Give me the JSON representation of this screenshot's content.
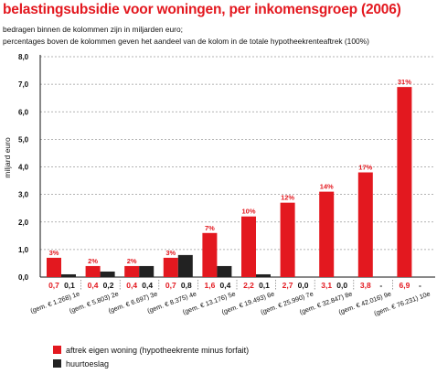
{
  "title": "belastingsubsidie voor woningen, per inkomensgroep (2006)",
  "subtitle_1": "bedragen binnen de kolommen zijn in miljarden euro;",
  "subtitle_2": "percentages boven de kolommen geven het aandeel van de kolom in de totale hypotheekrenteaftrek (100%)",
  "colors": {
    "red": "#e3181f",
    "black": "#222222",
    "grid": "#9a9a9a"
  },
  "chart_data": {
    "type": "bar",
    "ylabel": "miljard euro",
    "ylim": [
      0,
      8
    ],
    "yticks": [
      "0,0",
      "1,0",
      "2,0",
      "3,0",
      "4,0",
      "5,0",
      "6,0",
      "7,0",
      "8,0"
    ],
    "grid": "horizontal dashed",
    "categories": [
      "(gem. € 1.268) 1e",
      "(gem. € 5.803) 2e",
      "(gem. € 6.697) 3e",
      "(gem. € 8.375) 4e",
      "(gem. € 13.176) 5e",
      "(gem. € 19.493) 6e",
      "(gem. € 25.990) 7e",
      "(gem. € 32.847) 8e",
      "(gem. € 42.016) 9e",
      "(gem. € 76.231) 10e"
    ],
    "series": [
      {
        "name": "aftrek eigen woning (hypotheekrente minus forfait)",
        "values": [
          0.7,
          0.4,
          0.4,
          0.7,
          1.6,
          2.2,
          2.7,
          3.1,
          3.8,
          6.9
        ],
        "labels": [
          "0,7",
          "0,4",
          "0,4",
          "0,7",
          "1,6",
          "2,2",
          "2,7",
          "3,1",
          "3,8",
          "6,9"
        ],
        "percentages": [
          "3%",
          "2%",
          "2%",
          "3%",
          "7%",
          "10%",
          "12%",
          "14%",
          "17%",
          "31%"
        ]
      },
      {
        "name": "huurtoeslag",
        "values": [
          0.1,
          0.2,
          0.4,
          0.8,
          0.4,
          0.1,
          0.0,
          0.0,
          0,
          0
        ],
        "labels": [
          "0,1",
          "0,2",
          "0,4",
          "0,8",
          "0,4",
          "0,1",
          "0,0",
          "0,0",
          "-",
          "-"
        ]
      }
    ],
    "legend": "bottom-left"
  }
}
